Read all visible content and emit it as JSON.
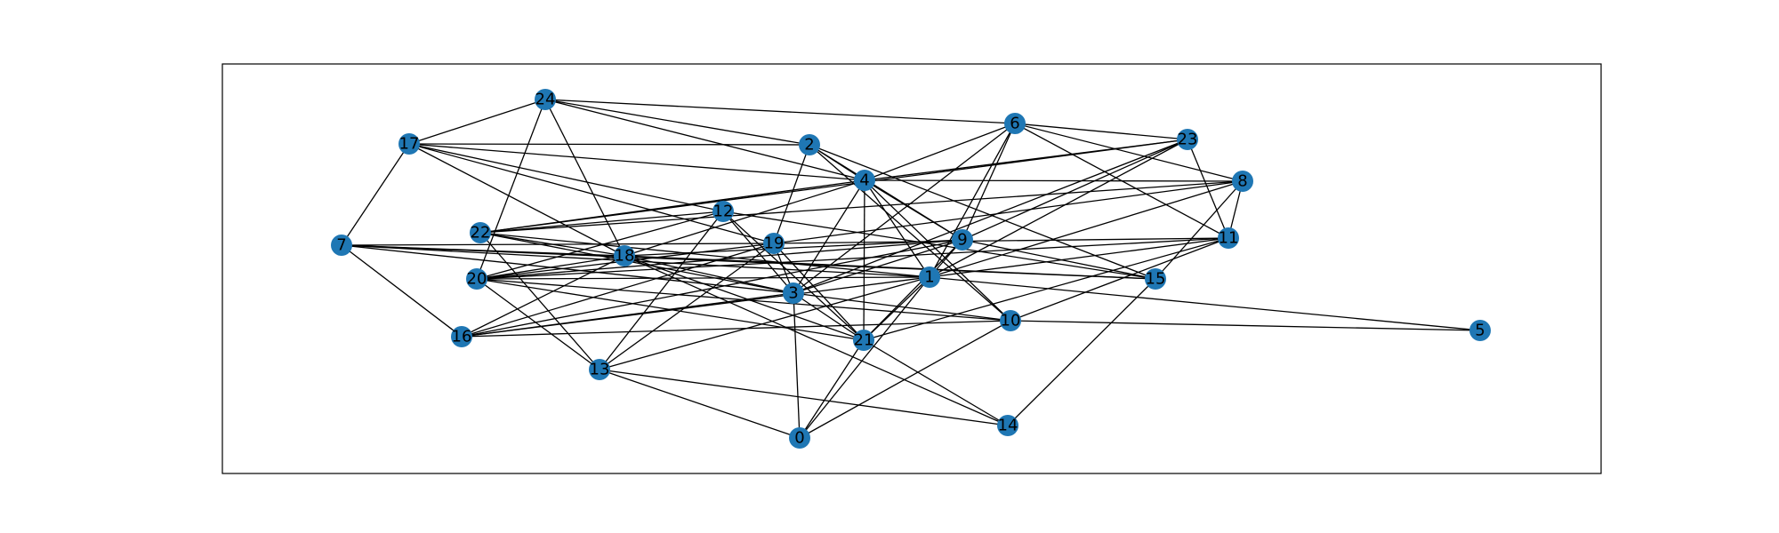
{
  "graph": {
    "node_color": "#1f77b4",
    "edge_color": "#000000",
    "nodes": [
      {
        "id": "0"
      },
      {
        "id": "1"
      },
      {
        "id": "2"
      },
      {
        "id": "3"
      },
      {
        "id": "4"
      },
      {
        "id": "5"
      },
      {
        "id": "6"
      },
      {
        "id": "7"
      },
      {
        "id": "8"
      },
      {
        "id": "9"
      },
      {
        "id": "10"
      },
      {
        "id": "11"
      },
      {
        "id": "12"
      },
      {
        "id": "13"
      },
      {
        "id": "14"
      },
      {
        "id": "15"
      },
      {
        "id": "16"
      },
      {
        "id": "17"
      },
      {
        "id": "18"
      },
      {
        "id": "19"
      },
      {
        "id": "20"
      },
      {
        "id": "21"
      },
      {
        "id": "22"
      },
      {
        "id": "23"
      },
      {
        "id": "24"
      }
    ],
    "edges": [
      [
        "24",
        "17"
      ],
      [
        "24",
        "2"
      ],
      [
        "24",
        "4"
      ],
      [
        "24",
        "6"
      ],
      [
        "24",
        "20"
      ],
      [
        "24",
        "18"
      ],
      [
        "17",
        "2"
      ],
      [
        "17",
        "4"
      ],
      [
        "17",
        "7"
      ],
      [
        "17",
        "12"
      ],
      [
        "17",
        "18"
      ],
      [
        "17",
        "19"
      ],
      [
        "2",
        "4"
      ],
      [
        "2",
        "19"
      ],
      [
        "2",
        "15"
      ],
      [
        "2",
        "10"
      ],
      [
        "2",
        "9"
      ],
      [
        "6",
        "23"
      ],
      [
        "6",
        "8"
      ],
      [
        "6",
        "11"
      ],
      [
        "6",
        "4"
      ],
      [
        "6",
        "9"
      ],
      [
        "6",
        "1"
      ],
      [
        "6",
        "3"
      ],
      [
        "23",
        "4"
      ],
      [
        "23",
        "22"
      ],
      [
        "23",
        "11"
      ],
      [
        "23",
        "9"
      ],
      [
        "23",
        "1"
      ],
      [
        "23",
        "3"
      ],
      [
        "8",
        "4"
      ],
      [
        "8",
        "11"
      ],
      [
        "8",
        "15"
      ],
      [
        "8",
        "19"
      ],
      [
        "8",
        "22"
      ],
      [
        "8",
        "1"
      ],
      [
        "4",
        "9"
      ],
      [
        "4",
        "10"
      ],
      [
        "4",
        "21"
      ],
      [
        "4",
        "1"
      ],
      [
        "4",
        "3"
      ],
      [
        "4",
        "18"
      ],
      [
        "4",
        "22"
      ],
      [
        "12",
        "22"
      ],
      [
        "12",
        "20"
      ],
      [
        "12",
        "3"
      ],
      [
        "12",
        "13"
      ],
      [
        "12",
        "21"
      ],
      [
        "12",
        "15"
      ],
      [
        "22",
        "18"
      ],
      [
        "22",
        "13"
      ],
      [
        "22",
        "1"
      ],
      [
        "22",
        "3"
      ],
      [
        "7",
        "18"
      ],
      [
        "7",
        "19"
      ],
      [
        "7",
        "1"
      ],
      [
        "7",
        "3"
      ],
      [
        "7",
        "16"
      ],
      [
        "7",
        "15"
      ],
      [
        "19",
        "20"
      ],
      [
        "19",
        "3"
      ],
      [
        "19",
        "16"
      ],
      [
        "19",
        "13"
      ],
      [
        "19",
        "11"
      ],
      [
        "19",
        "21"
      ],
      [
        "9",
        "16"
      ],
      [
        "9",
        "18"
      ],
      [
        "9",
        "1"
      ],
      [
        "9",
        "3"
      ],
      [
        "9",
        "15"
      ],
      [
        "9",
        "20"
      ],
      [
        "9",
        "21"
      ],
      [
        "11",
        "1"
      ],
      [
        "11",
        "20"
      ],
      [
        "11",
        "10"
      ],
      [
        "11",
        "21"
      ],
      [
        "18",
        "3"
      ],
      [
        "18",
        "21"
      ],
      [
        "18",
        "16"
      ],
      [
        "18",
        "14"
      ],
      [
        "18",
        "15"
      ],
      [
        "18",
        "20"
      ],
      [
        "20",
        "10"
      ],
      [
        "20",
        "13"
      ],
      [
        "20",
        "21"
      ],
      [
        "20",
        "1"
      ],
      [
        "1",
        "0"
      ],
      [
        "1",
        "21"
      ],
      [
        "1",
        "16"
      ],
      [
        "1",
        "13"
      ],
      [
        "1",
        "5"
      ],
      [
        "3",
        "0"
      ],
      [
        "3",
        "21"
      ],
      [
        "3",
        "16"
      ],
      [
        "3",
        "10"
      ],
      [
        "10",
        "0"
      ],
      [
        "10",
        "16"
      ],
      [
        "10",
        "5"
      ],
      [
        "21",
        "0"
      ],
      [
        "21",
        "14"
      ],
      [
        "13",
        "0"
      ],
      [
        "13",
        "14"
      ],
      [
        "15",
        "14"
      ]
    ]
  }
}
